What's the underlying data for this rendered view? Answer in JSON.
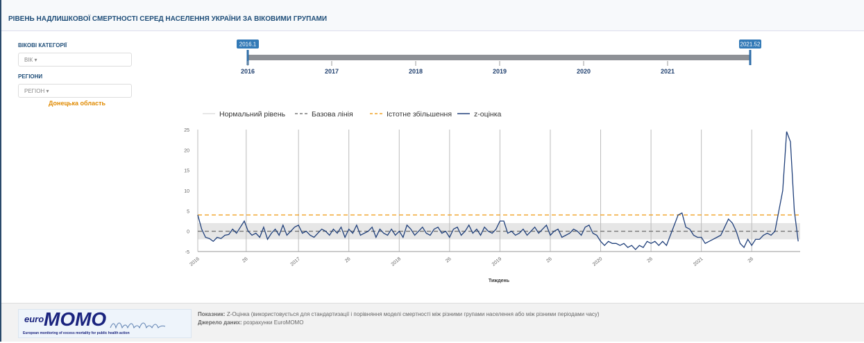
{
  "header": {
    "title": "РІВЕНЬ НАДЛИШКОВОЇ СМЕРТНОСТІ СЕРЕД НАСЕЛЕННЯ УКРАЇНИ ЗА ВІКОВИМИ ГРУПАМИ"
  },
  "filters": {
    "age_label": "ВІКОВІ КАТЕГОРІЇ",
    "age_select": "ВІК",
    "region_label": "РЕГІОНИ",
    "region_select": "РЕГІОН",
    "region_selected": "Донецька область"
  },
  "slider": {
    "start_label": "2016.1",
    "end_label": "2021.52",
    "years": [
      "2016",
      "2017",
      "2018",
      "2019",
      "2020",
      "2021"
    ]
  },
  "chart_data": {
    "type": "line",
    "x_label": "Тиждень",
    "x": [
      0,
      2,
      4,
      6,
      8,
      10,
      12,
      14,
      16,
      18,
      20,
      22,
      24,
      26,
      28,
      30,
      32,
      34,
      36,
      38,
      40,
      42,
      44,
      46,
      48,
      50,
      52,
      54,
      56,
      58,
      60,
      62,
      64,
      66,
      68,
      70,
      72,
      74,
      76,
      78,
      80,
      82,
      84,
      86,
      88,
      90,
      92,
      94,
      96,
      98,
      100,
      102,
      104,
      106,
      108,
      110,
      112,
      114,
      116,
      118,
      120,
      122,
      124,
      126,
      128,
      130,
      132,
      134,
      136,
      138,
      140,
      142,
      144,
      146,
      148,
      150,
      152,
      154,
      156,
      158,
      160,
      162,
      164,
      166,
      168,
      170,
      172,
      174,
      176,
      178,
      180,
      182,
      184,
      186,
      188,
      190,
      192,
      194,
      196,
      198,
      200,
      202,
      204,
      206,
      208,
      210,
      212,
      214,
      216,
      218,
      220,
      222,
      224,
      226,
      228,
      230,
      232,
      234,
      236,
      238,
      240,
      242,
      244,
      246,
      248,
      250,
      252,
      254,
      256,
      258,
      260,
      262,
      264,
      266,
      268,
      270,
      272,
      274,
      276,
      278,
      280,
      282,
      284,
      286,
      288,
      290,
      292,
      294,
      296,
      298,
      300,
      302,
      304,
      306,
      308,
      310
    ],
    "series": [
      {
        "name": "z-оцінка",
        "color": "#1f3f7a",
        "values": [
          4,
          0.5,
          -1.5,
          -1.8,
          -2.5,
          -1.5,
          -1.8,
          -1,
          -0.8,
          0.5,
          -0.5,
          1,
          2.5,
          0,
          -1,
          -0.5,
          -1.5,
          1,
          -2,
          -0.5,
          0.5,
          -1,
          1.5,
          -1,
          0,
          1,
          1.5,
          -0.5,
          0,
          -1,
          -1.5,
          -0.5,
          0.5,
          0,
          -1,
          0.5,
          -0.5,
          1,
          -1.5,
          0.5,
          -0.5,
          1.5,
          -1,
          -0.5,
          0,
          1,
          -1.5,
          0.5,
          -0.5,
          -1,
          0.5,
          -1,
          0,
          -1.5,
          1.5,
          0.5,
          -1,
          0,
          1,
          -0.5,
          -1,
          0.5,
          1,
          -0.5,
          0,
          -1.5,
          0.5,
          1,
          -1,
          0,
          1.5,
          -0.5,
          0.5,
          -1,
          1,
          0,
          -0.5,
          0.5,
          2.5,
          2.5,
          -0.5,
          0,
          -1,
          -0.5,
          0.5,
          -1,
          0,
          1,
          -0.5,
          0.5,
          1.5,
          -1,
          0,
          0.5,
          -1.5,
          -1,
          -0.5,
          0.5,
          0,
          -1,
          1,
          1.5,
          -0.5,
          -1,
          -2.5,
          -3.5,
          -2.5,
          -3,
          -3,
          -3.5,
          -3,
          -4,
          -3.5,
          -4.5,
          -3.5,
          -4,
          -2.5,
          -3,
          -2.5,
          -3.5,
          -2.5,
          -3.5,
          -1,
          1.5,
          4,
          4.5,
          1,
          0.5,
          -1,
          -1.5,
          -1.5,
          -3,
          -2.5,
          -2,
          -1.5,
          -1,
          1,
          3,
          2,
          0,
          -3,
          -4,
          -2,
          -3.5,
          -2,
          -2,
          -1,
          -0.5,
          -1,
          0,
          5,
          10,
          24.5,
          22,
          5,
          -2.5
        ]
      }
    ],
    "normal_range": {
      "name": "Нормальний рівень",
      "color": "#e6e6e6",
      "values": [
        -2,
        2
      ]
    },
    "reference_lines": [
      {
        "name": "Базова лінія",
        "color": "#777777",
        "value": 0
      },
      {
        "name": "Істотне збільшення",
        "color": "#f0a020",
        "value": 4
      }
    ],
    "xlim": [
      0,
      311
    ],
    "xticks": [
      {
        "value": 0,
        "label": "2016"
      },
      {
        "value": 25,
        "label": "26"
      },
      {
        "value": 52,
        "label": "2017"
      },
      {
        "value": 78,
        "label": "26"
      },
      {
        "value": 104,
        "label": "2018"
      },
      {
        "value": 130,
        "label": "26"
      },
      {
        "value": 156,
        "label": "2019"
      },
      {
        "value": 182,
        "label": "26"
      },
      {
        "value": 208,
        "label": "2020"
      },
      {
        "value": 234,
        "label": "26"
      },
      {
        "value": 260,
        "label": "2021"
      },
      {
        "value": 286,
        "label": "26"
      }
    ],
    "ylim": [
      -5,
      25
    ],
    "yticks": [
      -5,
      0,
      5,
      10,
      15,
      20,
      25
    ],
    "grid": true
  },
  "footer": {
    "logo_small": "euro",
    "logo_big": "MOMO",
    "tagline": "European monitoring of excess mortality for public health action",
    "indicator_label": "Показник:",
    "indicator_text": "Z-Оцінка (використовується для стандартизації і порівняння моделі смертності між різними групами населення або між різними періодами часу)",
    "source_label": "Джерело даних:",
    "source_text": "розрахунки EuroMOMO"
  }
}
